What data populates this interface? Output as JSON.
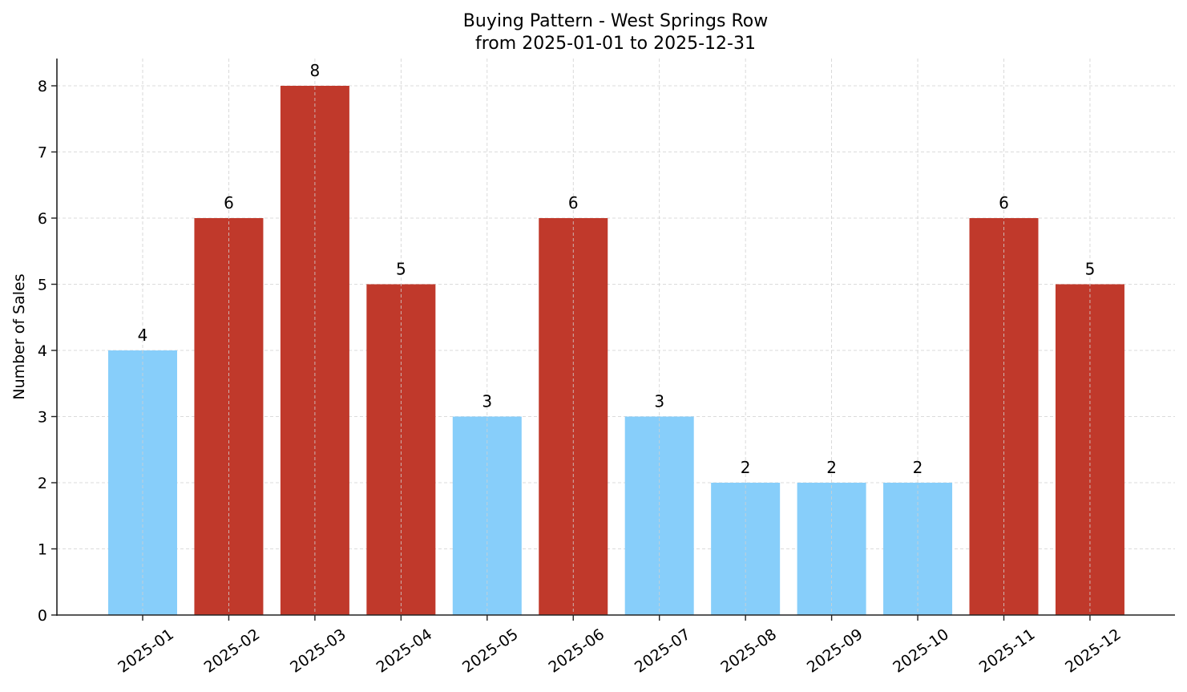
{
  "chart_data": {
    "type": "bar",
    "title": "Buying Pattern - West Springs Row",
    "subtitle": "from 2025-01-01 to 2025-12-31",
    "xlabel": "",
    "ylabel": "Number of Sales",
    "categories": [
      "2025-01",
      "2025-02",
      "2025-03",
      "2025-04",
      "2025-05",
      "2025-06",
      "2025-07",
      "2025-08",
      "2025-09",
      "2025-10",
      "2025-11",
      "2025-12"
    ],
    "values": [
      4,
      6,
      8,
      5,
      3,
      6,
      3,
      2,
      2,
      2,
      6,
      5
    ],
    "bar_colors": [
      "#87CEFA",
      "#C0392B",
      "#C0392B",
      "#C0392B",
      "#87CEFA",
      "#C0392B",
      "#87CEFA",
      "#87CEFA",
      "#87CEFA",
      "#87CEFA",
      "#C0392B",
      "#C0392B"
    ],
    "ylim": [
      0,
      8.4
    ],
    "yticks": [
      0,
      1,
      2,
      3,
      4,
      5,
      6,
      7,
      8
    ],
    "grid": true,
    "legend": null,
    "data_labels": true,
    "xtick_rotation": 35
  }
}
